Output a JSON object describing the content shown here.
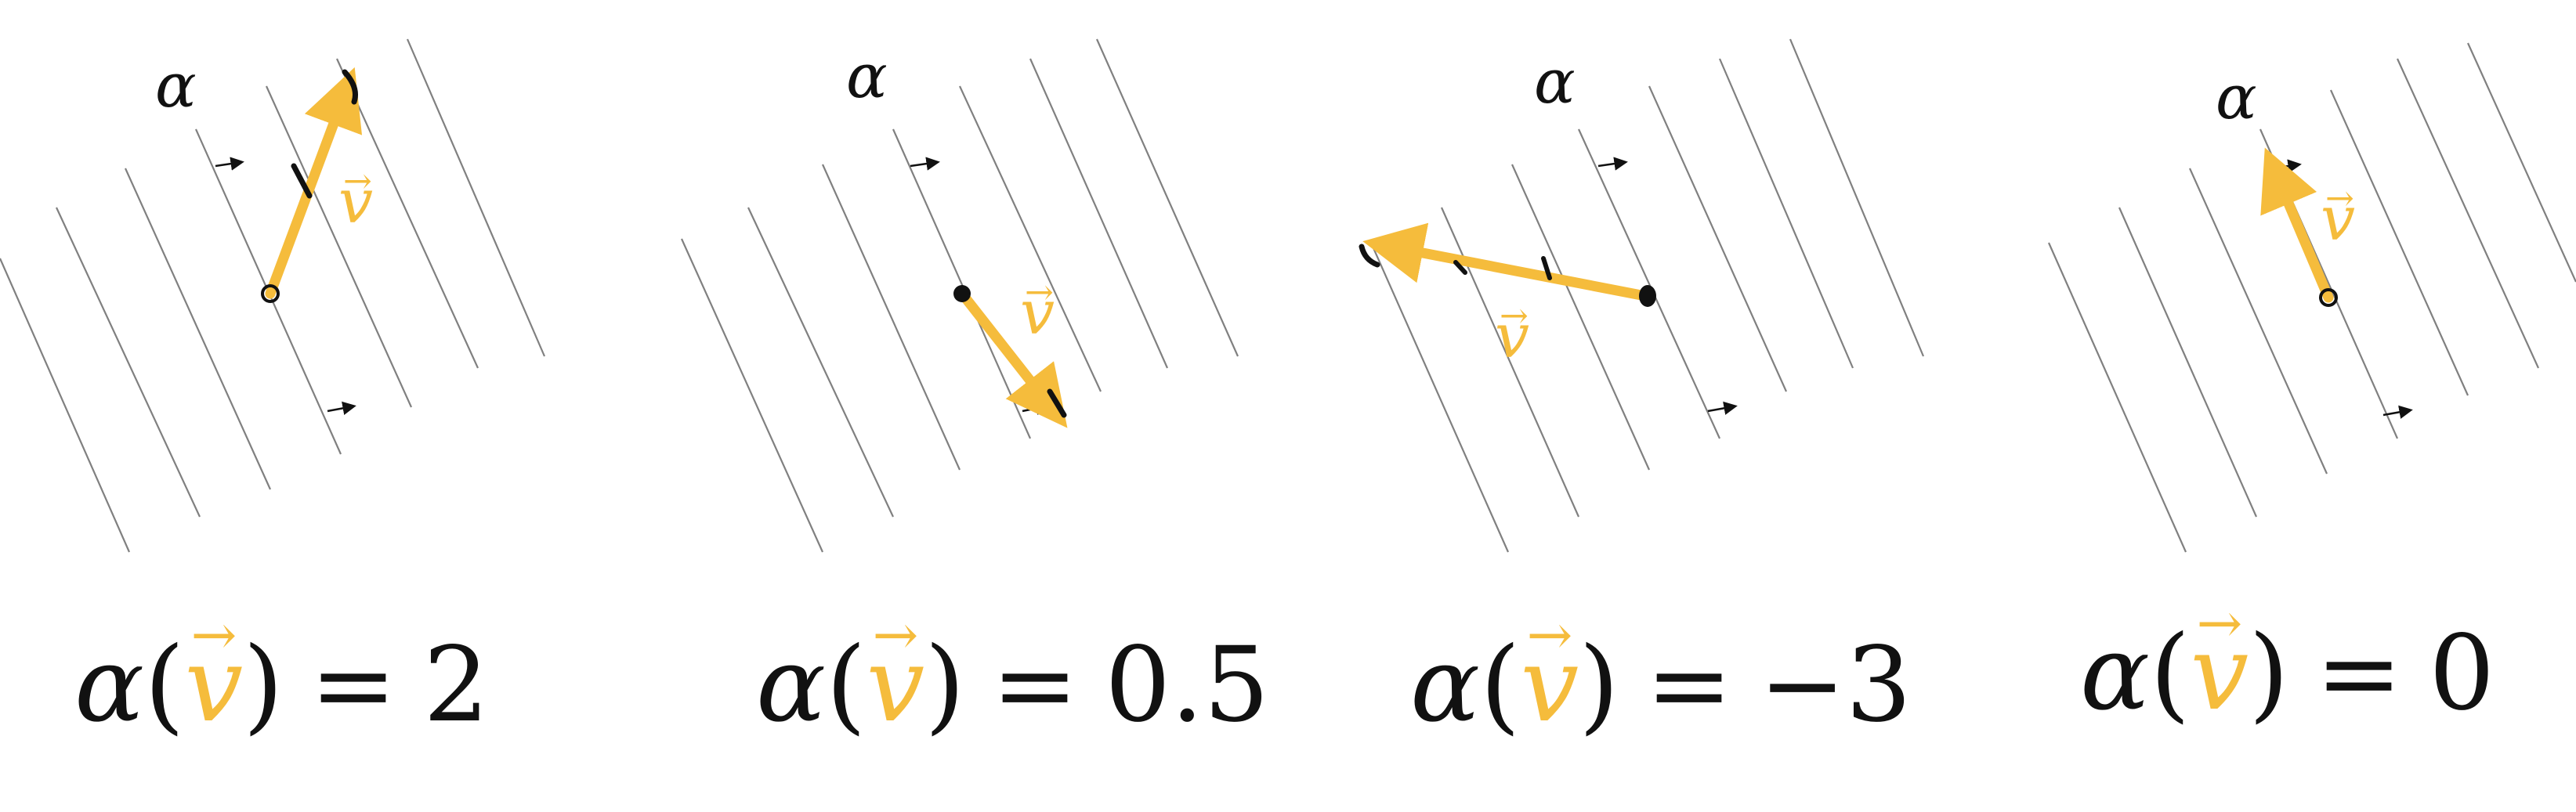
{
  "colors": {
    "vector": "#F5BC3C",
    "lines": "#7a7a7a",
    "ink": "#111111"
  },
  "panels": [
    {
      "covector_label": "α",
      "vector_label": "v",
      "vector_arrow": "→",
      "eq_lhs_alpha": "α",
      "eq_open": "(",
      "eq_close": ")",
      "eq_sign": "=",
      "eq_value": "2"
    },
    {
      "covector_label": "α",
      "vector_label": "v",
      "vector_arrow": "→",
      "eq_lhs_alpha": "α",
      "eq_open": "(",
      "eq_close": ")",
      "eq_sign": "=",
      "eq_value": "0.5"
    },
    {
      "covector_label": "α",
      "vector_label": "v",
      "vector_arrow": "→",
      "eq_lhs_alpha": "α",
      "eq_open": "(",
      "eq_close": ")",
      "eq_sign": "=",
      "eq_value": "−3"
    },
    {
      "covector_label": "α",
      "vector_label": "v",
      "vector_arrow": "→",
      "eq_lhs_alpha": "α",
      "eq_open": "(",
      "eq_close": ")",
      "eq_sign": "=",
      "eq_value": "0"
    }
  ]
}
